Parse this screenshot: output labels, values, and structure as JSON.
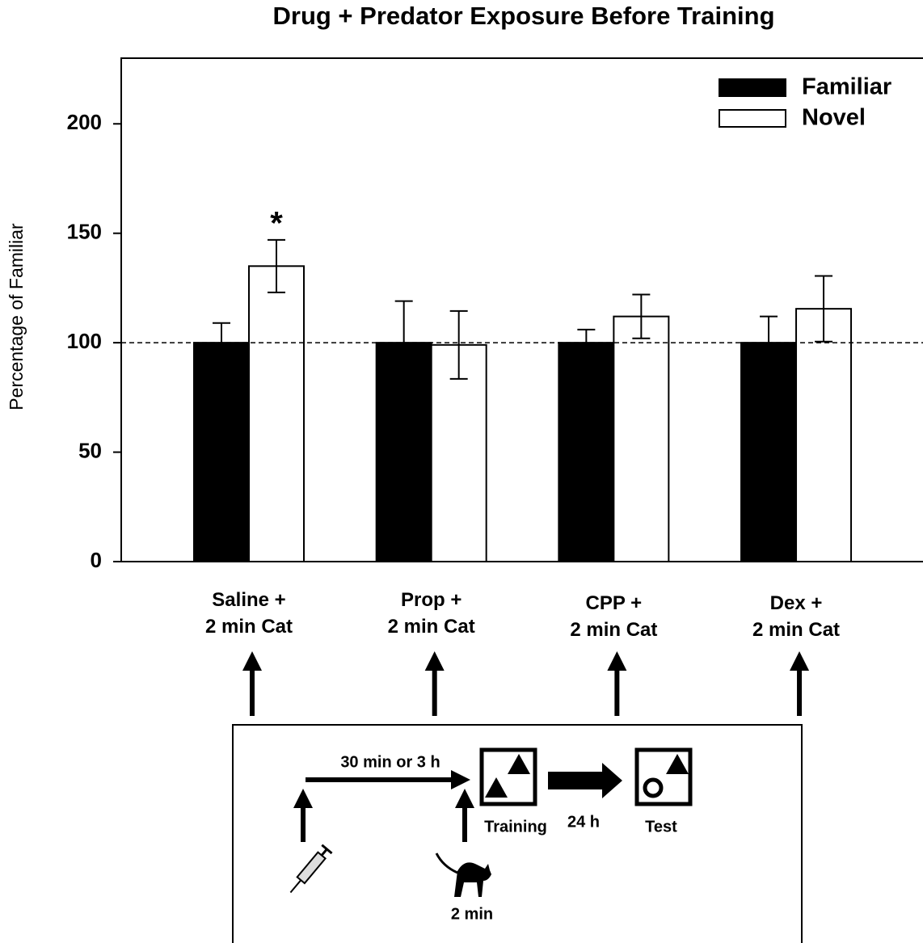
{
  "chart_data": {
    "type": "bar",
    "title": "Drug + Predator Exposure Before Training",
    "y_label": "Percentage of Familiar",
    "categories": [
      "Saline +\n2 min Cat",
      "Prop +\n2 min Cat",
      "CPP +\n2 min Cat",
      "Dex +\n2 min Cat"
    ],
    "series": [
      {
        "name": "Familiar",
        "color": "#000000",
        "values": [
          100,
          100,
          100,
          100
        ],
        "errors": [
          9,
          19,
          6,
          12
        ]
      },
      {
        "name": "Novel",
        "color": "#ffffff",
        "values": [
          135,
          99,
          112,
          115.5
        ],
        "errors": [
          12,
          15.5,
          10,
          15
        ]
      }
    ],
    "annotations": [
      {
        "text": "*",
        "category": 0,
        "series": 1
      }
    ],
    "reference_line": 100,
    "ylim": [
      0,
      230
    ],
    "yticks": [
      0,
      50,
      100,
      150,
      200
    ],
    "grid": false,
    "legend": "top-right"
  },
  "diagram": {
    "interval": "30 min or 3 h",
    "training": "Training",
    "delay": "24 h",
    "test": "Test",
    "exposure": "2 min"
  }
}
